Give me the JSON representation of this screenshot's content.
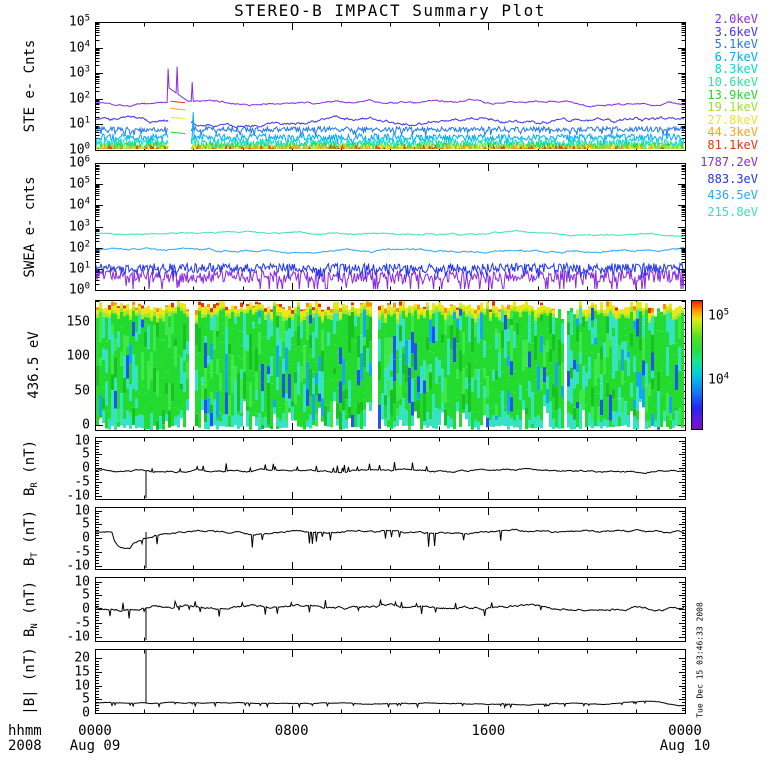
{
  "title": "STEREO-B IMPACT Summary Plot",
  "timestamp_vertical": "Tue Dec 15 03:46:33 2008",
  "x_axis": {
    "unit_label": "hhmm",
    "year_label": "2008",
    "ticks": [
      {
        "t": 0,
        "time": "0000",
        "date": "Aug 09"
      },
      {
        "t": 0.3333,
        "time": "0800"
      },
      {
        "t": 0.6667,
        "time": "1600"
      },
      {
        "t": 1,
        "time": "0000",
        "date": "Aug 10"
      }
    ]
  },
  "legend_ste": [
    {
      "label": "2.0keV",
      "color": "#8A2BE2"
    },
    {
      "label": "3.6keV",
      "color": "#4433EE"
    },
    {
      "label": "5.1keV",
      "color": "#2277EE"
    },
    {
      "label": "6.7keV",
      "color": "#00AAFF"
    },
    {
      "label": "8.3keV",
      "color": "#00DDD0"
    },
    {
      "label": "10.6keV",
      "color": "#2BE89B"
    },
    {
      "label": "13.9keV",
      "color": "#2BD42B"
    },
    {
      "label": "19.1keV",
      "color": "#9BE22B"
    },
    {
      "label": "27.8keV",
      "color": "#E8E820"
    },
    {
      "label": "44.3keV",
      "color": "#FFA319"
    },
    {
      "label": "81.1keV",
      "color": "#F03010"
    }
  ],
  "legend_swea": [
    {
      "label": "1787.2eV",
      "color": "#8A2BE2"
    },
    {
      "label": "883.3eV",
      "color": "#2236EE"
    },
    {
      "label": "436.5eV",
      "color": "#28A8F5"
    },
    {
      "label": "215.8eV",
      "color": "#3BE0B8"
    }
  ],
  "colorbar": {
    "labels": [
      {
        "exp": 5,
        "y": 316
      },
      {
        "exp": 4,
        "y": 380
      }
    ],
    "stops": [
      {
        "frac": 0.0,
        "color": "#7A16B8"
      },
      {
        "frac": 0.09,
        "color": "#5A18E8"
      },
      {
        "frac": 0.17,
        "color": "#2428F0"
      },
      {
        "frac": 0.3,
        "color": "#1580F5"
      },
      {
        "frac": 0.42,
        "color": "#00C8E0"
      },
      {
        "frac": 0.52,
        "color": "#18E49A"
      },
      {
        "frac": 0.62,
        "color": "#28DE40"
      },
      {
        "frac": 0.72,
        "color": "#55E020"
      },
      {
        "frac": 0.8,
        "color": "#AAE818"
      },
      {
        "frac": 0.86,
        "color": "#E6E612"
      },
      {
        "frac": 0.92,
        "color": "#FF9A00"
      },
      {
        "frac": 0.97,
        "color": "#F54A06"
      },
      {
        "frac": 1.0,
        "color": "#E81400"
      }
    ]
  },
  "chart_data": {
    "type": "multi-panel-time-series",
    "x_range_hours": [
      0,
      24
    ],
    "x_tick_labels": [
      "0000",
      "0800",
      "1600",
      "0000"
    ],
    "panels": [
      {
        "id": "ste",
        "type": "log-lines",
        "ylabel": {
          "pre": "STE e- Cnts",
          "sub": "",
          "post": ""
        },
        "scale": "log",
        "y_decades": [
          0,
          5
        ],
        "series": [
          {
            "name": "2.0keV",
            "color": "#8A2BE2",
            "level": 70,
            "kind": "walk",
            "amp": 0.05
          },
          {
            "name": "3.6keV",
            "color": "#4433EE",
            "level": 14,
            "kind": "walk",
            "amp": 0.09,
            "gap": true
          },
          {
            "name": "5.1keV",
            "color": "#2277EE",
            "level": 6.5,
            "kind": "noise",
            "spread": 0.1,
            "gap": true
          },
          {
            "name": "6.7keV",
            "color": "#00AAFF",
            "level": 3.2,
            "kind": "noise",
            "spread": 0.13,
            "gap": true
          },
          {
            "name": "8.3keV",
            "color": "#00DDD0",
            "level": 2.0,
            "kind": "noise",
            "spread": 0.16,
            "gap": true
          },
          {
            "name": "10.6keV",
            "color": "#2BE89B",
            "level": 1.6,
            "kind": "noise",
            "spread": 0.17,
            "gap": true
          },
          {
            "name": "13.9keV",
            "color": "#2BD42B",
            "level": 1.35,
            "kind": "noise",
            "spread": 0.16,
            "gap": true
          },
          {
            "name": "19.1keV",
            "color": "#9BE22B",
            "level": 1.15,
            "kind": "noise",
            "spread": 0.13,
            "gap": true
          },
          {
            "name": "27.8keV",
            "color": "#E8E820",
            "level": 1.1,
            "kind": "pops",
            "pop": 0.3,
            "popmax": 0.28,
            "gap": true
          },
          {
            "name": "44.3keV",
            "color": "#FFA319",
            "level": 1.05,
            "kind": "pops",
            "pop": 0.22,
            "popmax": 0.22,
            "gap": true
          },
          {
            "name": "81.1keV",
            "color": "#F03010",
            "level": 1.02,
            "kind": "pops",
            "pop": 0.15,
            "popmax": 0.18,
            "gap": true
          }
        ],
        "event": {
          "t_start": 0.124,
          "t_end": 0.158,
          "peaks": [
            [
              0.124,
              1500
            ],
            [
              0.139,
              1800
            ],
            [
              0.165,
              450
            ]
          ],
          "blue_spike": {
            "t": 0.166,
            "counts": 30,
            "series": "6.7keV"
          },
          "dash_t": [
            0.128,
            0.153
          ],
          "dashes": [
            {
              "color": "#F03010",
              "level": 80
            },
            {
              "color": "#FFA319",
              "level": 42
            },
            {
              "color": "#E8E820",
              "level": 19
            },
            {
              "color": "#2BD42B",
              "level": 5
            }
          ]
        }
      },
      {
        "id": "swea",
        "type": "log-lines",
        "ylabel": {
          "pre": "SWEA e- cnts",
          "sub": "",
          "post": ""
        },
        "scale": "log",
        "y_decades": [
          0,
          6
        ],
        "series": [
          {
            "name": "1787.2eV",
            "color": "#8A2BE2",
            "level": 4.5,
            "kind": "noise",
            "spread": 0.3,
            "dips": 0.05
          },
          {
            "name": "883.3eV",
            "color": "#2236EE",
            "level": 11,
            "kind": "noise",
            "spread": 0.22
          },
          {
            "name": "436.5eV",
            "color": "#28A8F5",
            "level": 80,
            "kind": "walk",
            "amp": 0.06
          },
          {
            "name": "215.8eV",
            "color": "#3BE0B8",
            "level": 480,
            "kind": "walk",
            "amp": 0.045,
            "drift_end": -0.18
          }
        ]
      },
      {
        "id": "spec",
        "type": "spectrogram",
        "ylabel": {
          "pre": "436.5 eV",
          "sub": "",
          "post": ""
        },
        "yticks": [
          150,
          100,
          50,
          0
        ],
        "y_minor_step": 10,
        "color_range": [
          4000,
          200000
        ],
        "palette": {
          "green": "#23DB2E",
          "green2": "#3CE84A",
          "dgreen": "#18C223",
          "cyan": "#35E2C2",
          "blue": "#2553EE",
          "skyblue": "#15A8EE",
          "yellow": "#E8E818",
          "ygreen": "#A5E822",
          "orange": "#FF9000",
          "red": "#EE3000"
        },
        "gaps_t": [
          [
            0.158,
            0.166
          ],
          [
            0.468,
            0.475
          ],
          [
            0.79,
            0.798
          ]
        ]
      },
      {
        "id": "br",
        "type": "line",
        "ylabel": {
          "pre": "B",
          "sub": "R",
          "post": " (nT)"
        },
        "yticks": [
          10,
          5,
          0,
          -5,
          -10
        ],
        "mean": -1.0,
        "vol": 0.45,
        "spike": {
          "t": 0.0864,
          "value": -12
        }
      },
      {
        "id": "bt",
        "type": "line",
        "ylabel": {
          "pre": "B",
          "sub": "T",
          "post": " (nT)"
        },
        "yticks": [
          10,
          5,
          0,
          -5,
          -10
        ],
        "mean": 2.2,
        "vol": 0.5,
        "spike": {
          "t": 0.0864,
          "value": -12
        },
        "early_dip": {
          "t": 0.042,
          "value": -3.8
        }
      },
      {
        "id": "bn",
        "type": "line",
        "ylabel": {
          "pre": "B",
          "sub": "N",
          "post": " (nT)"
        },
        "yticks": [
          10,
          5,
          0,
          -5,
          -10
        ],
        "mean": 0.5,
        "vol": 0.6,
        "spike": {
          "t": 0.0864,
          "value": -12
        }
      },
      {
        "id": "bmag",
        "type": "line",
        "ylabel": {
          "pre": "|B| (nT)",
          "sub": "",
          "post": ""
        },
        "yticks": [
          20,
          15,
          10,
          5,
          0
        ],
        "mean": 3.6,
        "vol": 0.18,
        "spike": {
          "t": 0.0864,
          "value": 23
        }
      }
    ]
  }
}
